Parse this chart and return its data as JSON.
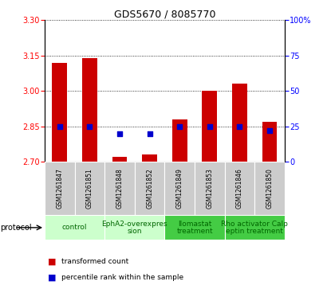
{
  "title": "GDS5670 / 8085770",
  "samples": [
    "GSM1261847",
    "GSM1261851",
    "GSM1261848",
    "GSM1261852",
    "GSM1261849",
    "GSM1261853",
    "GSM1261846",
    "GSM1261850"
  ],
  "bar_values": [
    3.12,
    3.14,
    2.72,
    2.73,
    2.88,
    3.0,
    3.03,
    2.87
  ],
  "percentile_values": [
    25,
    25,
    20,
    20,
    25,
    25,
    25,
    22
  ],
  "ylim_left": [
    2.7,
    3.3
  ],
  "ylim_right": [
    0,
    100
  ],
  "yticks_left": [
    2.7,
    2.85,
    3.0,
    3.15,
    3.3
  ],
  "yticks_right": [
    0,
    25,
    50,
    75,
    100
  ],
  "ytick_right_labels": [
    "0",
    "25",
    "50",
    "75",
    "100%"
  ],
  "bar_color": "#cc0000",
  "dot_color": "#0000cc",
  "gray_bg": "#cccccc",
  "protocol_groups": [
    {
      "start": 0,
      "end": 1,
      "label": "control",
      "color": "#ccffcc",
      "text_color": "#006600"
    },
    {
      "start": 2,
      "end": 3,
      "label": "EphA2-overexpres\nsion",
      "color": "#ccffcc",
      "text_color": "#006600"
    },
    {
      "start": 4,
      "end": 5,
      "label": "Ilomastat\ntreatment",
      "color": "#44cc44",
      "text_color": "#006600"
    },
    {
      "start": 6,
      "end": 7,
      "label": "Rho activator Calp\neptin treatment",
      "color": "#44cc44",
      "text_color": "#006600"
    }
  ],
  "legend_bar_label": "transformed count",
  "legend_dot_label": "percentile rank within the sample",
  "bar_width": 0.5,
  "dot_size": 18,
  "title_fontsize": 9,
  "tick_fontsize": 7,
  "sample_fontsize": 5.5,
  "protocol_fontsize": 6.5,
  "legend_fontsize": 6.5
}
